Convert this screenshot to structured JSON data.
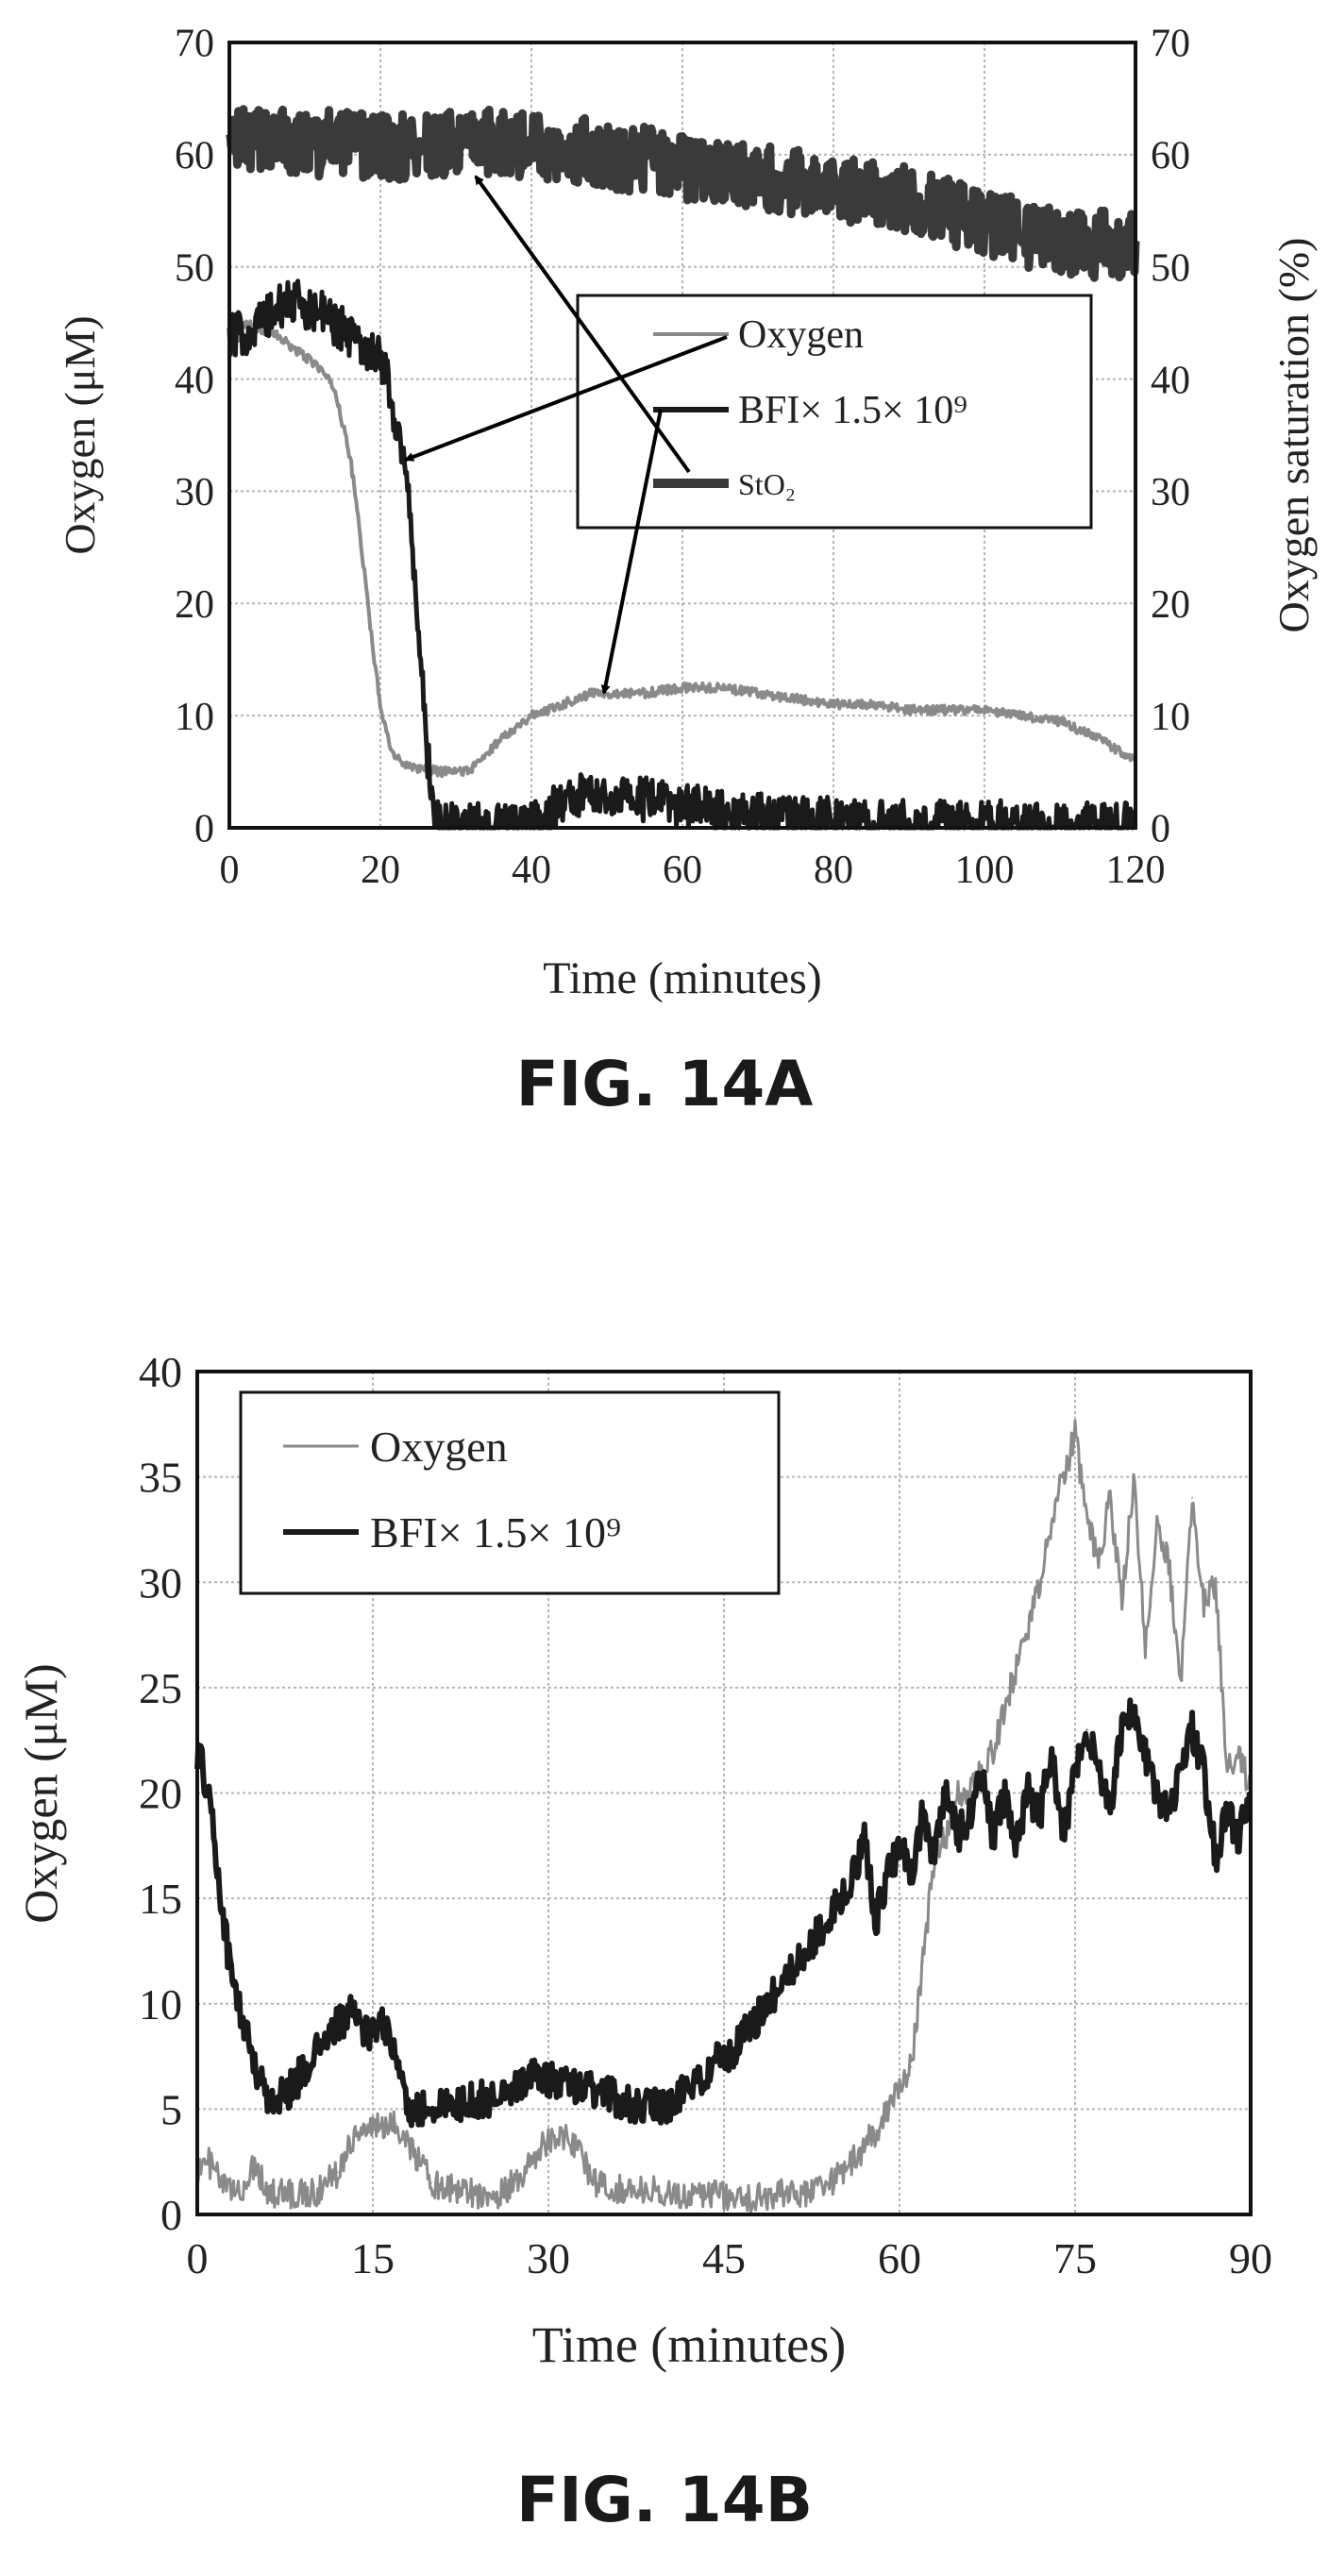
{
  "figures": [
    {
      "caption": "FIG. 14A"
    },
    {
      "caption": "FIG. 14B"
    }
  ],
  "chart_data": [
    {
      "type": "line",
      "xlabel": "Time (minutes)",
      "ylabel": "Oxygen (μM)",
      "y2label": "Oxygen saturation (%)",
      "xlim": [
        0,
        120
      ],
      "ylim": [
        0,
        70
      ],
      "y2lim": [
        0,
        70
      ],
      "xticks": [
        "0",
        "20",
        "40",
        "60",
        "80",
        "100",
        "120"
      ],
      "yticks": [
        "0",
        "10",
        "20",
        "30",
        "40",
        "50",
        "60",
        "70"
      ],
      "y2ticks": [
        "0",
        "10",
        "20",
        "30",
        "40",
        "50",
        "60",
        "70"
      ],
      "grid": true,
      "legend": [
        "Oxygen",
        "BFI× 1.5× 10⁹",
        "StO₂"
      ],
      "legend_position": "upper-right",
      "series": [
        {
          "name": "Oxygen",
          "color": "#8a8a8a",
          "noise": 0.4,
          "x": [
            0,
            2,
            4,
            6,
            8,
            10,
            12,
            14,
            16,
            17,
            18,
            19,
            20,
            21,
            22,
            24,
            26,
            28,
            30,
            32,
            34,
            36,
            38,
            40,
            42,
            44,
            46,
            48,
            50,
            55,
            60,
            65,
            70,
            75,
            80,
            85,
            90,
            95,
            100,
            105,
            110,
            115,
            120
          ],
          "y": [
            42,
            45,
            44.5,
            44,
            43,
            42,
            41,
            39,
            33,
            28,
            22,
            16,
            11,
            8,
            6.2,
            5.5,
            5.2,
            5,
            5,
            5.2,
            6.5,
            8,
            9,
            10,
            10.5,
            11,
            11.5,
            12,
            12,
            12,
            12.5,
            12.5,
            12,
            11.5,
            11,
            11,
            10.5,
            10.5,
            10.5,
            10,
            9.5,
            8,
            6
          ]
        },
        {
          "name": "BFI× 1.5× 10⁹",
          "color": "#1a1a1a",
          "noise": 2.0,
          "x": [
            0,
            2,
            4,
            6,
            8,
            10,
            12,
            14,
            16,
            18,
            20,
            21,
            22,
            23,
            24,
            25,
            26,
            27,
            28,
            30,
            35,
            38,
            40,
            42,
            44,
            46,
            48,
            50,
            55,
            60,
            65,
            70,
            75,
            80,
            85,
            90,
            100,
            110,
            120
          ],
          "y": [
            44,
            44,
            45,
            46,
            47,
            46.5,
            46,
            45,
            44,
            43,
            42,
            40,
            36,
            33,
            28,
            18,
            8,
            2,
            0.4,
            0.2,
            0.2,
            0.2,
            0.3,
            1.5,
            2.2,
            2.8,
            3.2,
            3,
            2.5,
            2,
            1.5,
            1.2,
            0.9,
            0.7,
            0.6,
            0.5,
            0.5,
            0.3,
            0.3
          ]
        },
        {
          "name": "StO₂",
          "color": "#3a3a3a",
          "noise": 3.0,
          "x": [
            0,
            5,
            10,
            15,
            20,
            25,
            30,
            35,
            40,
            45,
            50,
            55,
            60,
            65,
            70,
            75,
            80,
            85,
            90,
            95,
            100,
            105,
            110,
            115,
            120
          ],
          "y": [
            61,
            61.5,
            61,
            61,
            60.5,
            61,
            61,
            61,
            61,
            60.5,
            60,
            59.5,
            59,
            58.5,
            58,
            57.5,
            57,
            56.5,
            56,
            55,
            54,
            53,
            52,
            52,
            52
          ]
        }
      ],
      "annotations": [
        {
          "label": "StO₂",
          "points_to": {
            "x": 30,
            "y": 58.5
          }
        },
        {
          "label": "Oxygen",
          "points_to": {
            "x": 22,
            "y": 33
          }
        },
        {
          "label": "BFI× 1.5× 10⁹",
          "points_to": {
            "x": 47,
            "y": 12
          }
        }
      ]
    },
    {
      "type": "line",
      "xlabel": "Time (minutes)",
      "ylabel": "Oxygen (μM)",
      "xlim": [
        0,
        90
      ],
      "ylim": [
        0,
        40
      ],
      "xticks": [
        "0",
        "15",
        "30",
        "45",
        "60",
        "75",
        "90"
      ],
      "yticks": [
        "0",
        "5",
        "10",
        "15",
        "20",
        "25",
        "30",
        "35",
        "40"
      ],
      "grid": true,
      "legend": [
        "Oxygen",
        "BFI× 1.5× 10⁹"
      ],
      "legend_position": "upper-left",
      "series": [
        {
          "name": "Oxygen",
          "color": "#8a8a8a",
          "noise": 0.7,
          "x": [
            0,
            1,
            2,
            3,
            4,
            5,
            6,
            8,
            10,
            12,
            13,
            14,
            15,
            16,
            17,
            18,
            20,
            22,
            24,
            26,
            28,
            29,
            30,
            31,
            32,
            33,
            34,
            36,
            38,
            40,
            42,
            44,
            46,
            48,
            50,
            52,
            54,
            56,
            58,
            60,
            61,
            62,
            63,
            64,
            65,
            66,
            67,
            68,
            69,
            70,
            71,
            72,
            73,
            74,
            75,
            76,
            77,
            78,
            79,
            80,
            81,
            82,
            83,
            84,
            85,
            86,
            87,
            88,
            89,
            90
          ],
          "y": [
            2,
            2.5,
            1.5,
            1,
            1.3,
            2.5,
            1,
            1,
            1,
            2,
            3.5,
            4,
            4.2,
            4,
            4.3,
            3.5,
            1.5,
            1.2,
            1,
            1,
            2,
            3,
            3.5,
            3.8,
            3.5,
            2.5,
            1.5,
            1.2,
            1.2,
            1,
            1,
            1,
            0.8,
            0.8,
            1,
            1,
            1.5,
            2.5,
            4,
            6,
            7,
            12,
            17,
            18,
            20,
            20,
            21,
            22,
            24,
            26,
            28,
            30,
            33,
            35,
            37,
            33,
            31,
            34,
            29,
            35,
            27,
            33,
            31,
            25,
            34,
            29,
            30,
            21,
            22,
            20
          ]
        },
        {
          "name": "BFI× 1.5× 10⁹",
          "color": "#1a1a1a",
          "noise": 0.9,
          "x": [
            0,
            1,
            2,
            3,
            4,
            5,
            6,
            7,
            8,
            10,
            12,
            13,
            14,
            15,
            16,
            17,
            18,
            20,
            22,
            25,
            28,
            30,
            32,
            34,
            36,
            38,
            40,
            42,
            44,
            46,
            48,
            50,
            52,
            54,
            56,
            57,
            58,
            59,
            60,
            61,
            62,
            63,
            64,
            65,
            66,
            67,
            68,
            69,
            70,
            71,
            72,
            73,
            74,
            75,
            76,
            77,
            78,
            79,
            80,
            81,
            82,
            83,
            84,
            85,
            86,
            87,
            88,
            89,
            90
          ],
          "y": [
            22,
            20,
            15,
            11,
            9,
            7,
            5.5,
            5.5,
            6,
            7.5,
            9,
            9.5,
            9,
            8.5,
            9,
            7.5,
            5,
            5,
            5.2,
            5.5,
            6.5,
            6.5,
            6.2,
            5.8,
            5.5,
            5,
            5.2,
            6,
            7,
            8,
            9.5,
            11,
            12.5,
            14,
            16,
            18,
            14,
            16,
            17.5,
            16,
            19,
            17,
            20,
            18,
            19,
            21,
            18,
            20,
            17.5,
            20,
            19,
            22,
            18,
            21,
            23,
            21,
            19,
            23,
            24,
            22,
            20,
            19,
            21,
            23,
            21,
            17,
            19,
            18,
            20
          ]
        }
      ]
    }
  ]
}
